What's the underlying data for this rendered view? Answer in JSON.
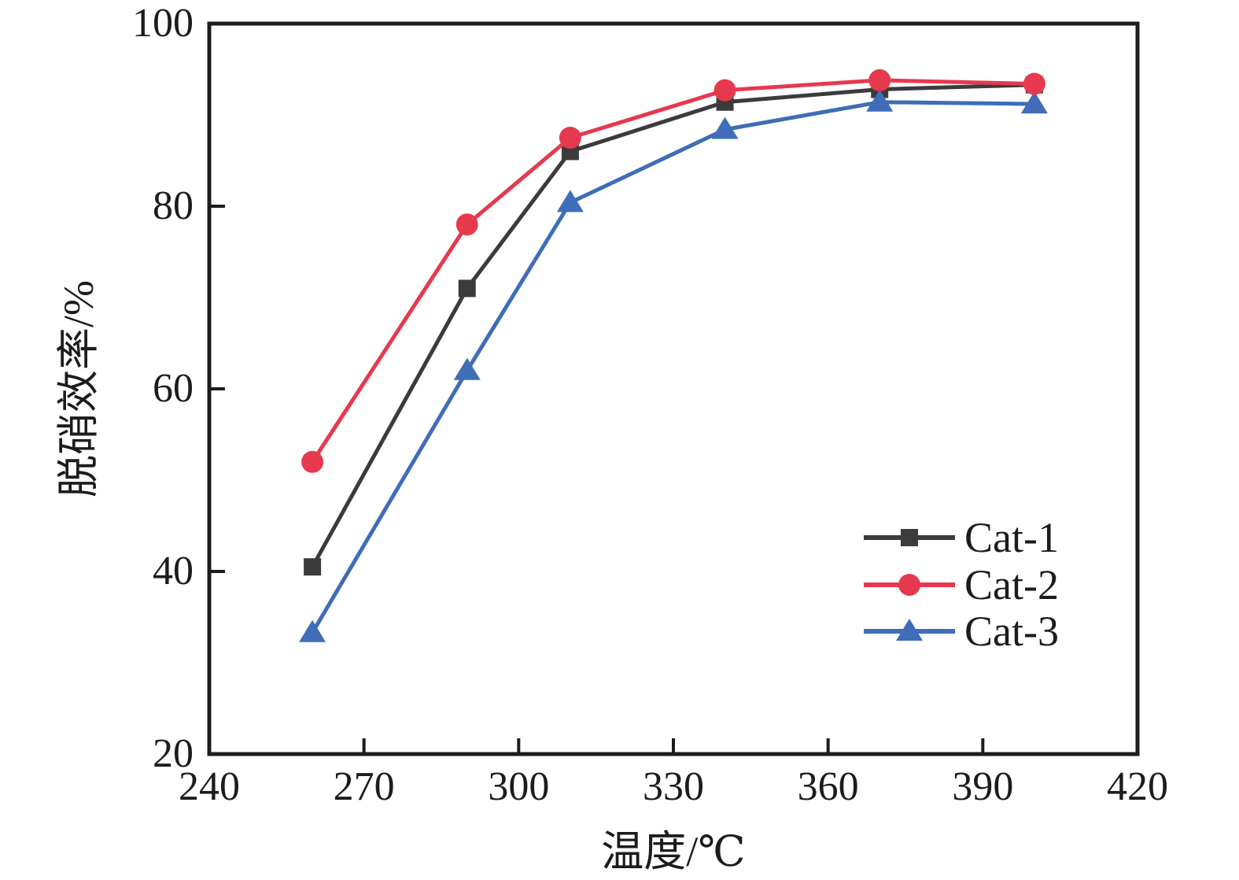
{
  "figure": {
    "background": "#ffffff",
    "axis_color": "#1c1c1c"
  },
  "chart_data": {
    "type": "line",
    "title": "",
    "xlabel": "温度/℃",
    "ylabel": "脱硝效率/%",
    "xlim": [
      240,
      420
    ],
    "ylim": [
      20,
      100
    ],
    "xticks": [
      240,
      270,
      300,
      330,
      360,
      390,
      420
    ],
    "yticks": [
      20,
      40,
      60,
      80,
      100
    ],
    "grid": false,
    "legend_position": "lower-right",
    "x": [
      260,
      290,
      310,
      340,
      370,
      400
    ],
    "series": [
      {
        "name": "Cat-1",
        "marker": "square",
        "color": "#3b3b3b",
        "z": 1,
        "values": [
          40.5,
          71.0,
          86.0,
          91.4,
          92.8,
          93.3
        ]
      },
      {
        "name": "Cat-2",
        "marker": "circle",
        "color": "#e6394e",
        "z": 3,
        "values": [
          52.0,
          78.0,
          87.5,
          92.7,
          93.8,
          93.4
        ]
      },
      {
        "name": "Cat-3",
        "marker": "triangle",
        "color": "#3f6db8",
        "z": 2,
        "values": [
          33.3,
          62.0,
          80.4,
          88.4,
          91.4,
          91.2
        ]
      }
    ]
  }
}
